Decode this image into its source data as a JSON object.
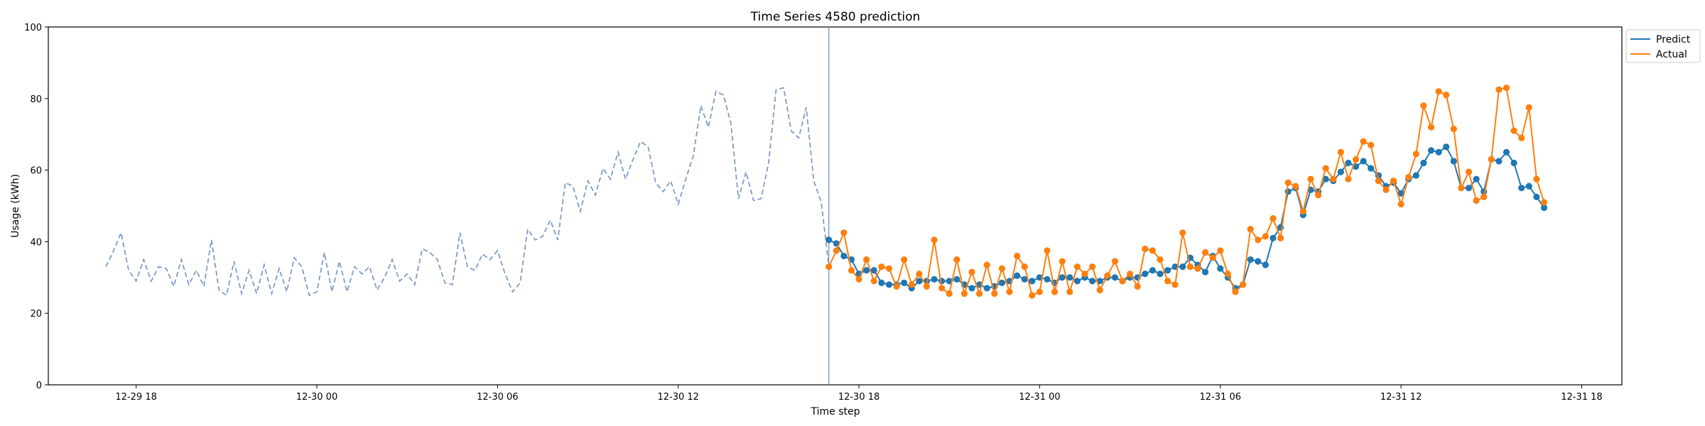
{
  "chart_data": {
    "type": "line",
    "title": "Time Series 4580 prediction",
    "xlabel": "Time step",
    "ylabel": "Usage (kWh)",
    "ylim": [
      0,
      100
    ],
    "yticks": [
      "0",
      "20",
      "40",
      "60",
      "80",
      "100"
    ],
    "xlim": [
      "12-29 15:05",
      "12-31 19:20"
    ],
    "xticks": [
      {
        "value": "12-29 18:00",
        "label": "12-29 18"
      },
      {
        "value": "12-30 00:00",
        "label": "12-30 00"
      },
      {
        "value": "12-30 06:00",
        "label": "12-30 06"
      },
      {
        "value": "12-30 12:00",
        "label": "12-30 12"
      },
      {
        "value": "12-30 18:00",
        "label": "12-30 18"
      },
      {
        "value": "12-31 00:00",
        "label": "12-31 00"
      },
      {
        "value": "12-31 06:00",
        "label": "12-31 06"
      },
      {
        "value": "12-31 12:00",
        "label": "12-31 12"
      },
      {
        "value": "12-31 18:00",
        "label": "12-31 18"
      }
    ],
    "grid": false,
    "legend_position": "upper-right-outside",
    "forecast_start": "12-30 17:00",
    "colors": {
      "history": "#7d9cc9",
      "predict": "#1f77b4",
      "actual": "#ff7f0e",
      "divider": "#7d9cc9"
    },
    "history": {
      "start": "12-29 17:00",
      "step_minutes": 15,
      "values": [
        33,
        37.5,
        42.5,
        32,
        29,
        35,
        29,
        33,
        32.5,
        27.5,
        35,
        28,
        32,
        27.5,
        40.5,
        26.5,
        25,
        34.5,
        25.5,
        32,
        25.5,
        33.5,
        25.5,
        32.5,
        26,
        35.5,
        33,
        25,
        26,
        37,
        26,
        34.5,
        26,
        33,
        31,
        33,
        26.5,
        30,
        35,
        29,
        31,
        28,
        38,
        37,
        35,
        28.5,
        28,
        42.5,
        33,
        32,
        36.5,
        35,
        37.5,
        31,
        26,
        28.5,
        43.5,
        40.5,
        41.5,
        46,
        40.5,
        56.5,
        55.5,
        48.5,
        57,
        53,
        60.5,
        57.5,
        65,
        57.5,
        63,
        68,
        66.5,
        56.5,
        54,
        57,
        50.5,
        57.5,
        64,
        78,
        72,
        82,
        81,
        73,
        52,
        59.5,
        51.5,
        52,
        62,
        82.5,
        83,
        71,
        69,
        77.5,
        57,
        51,
        33
      ]
    },
    "series": [
      {
        "name": "Predict",
        "start": "12-30 17:00",
        "step_minutes": 15,
        "values": [
          40.5,
          39.5,
          36,
          35,
          31,
          32,
          32,
          28.5,
          28,
          28,
          28.5,
          27,
          29,
          29,
          29.5,
          29,
          29,
          29.5,
          28,
          27,
          28,
          27,
          27.5,
          28.5,
          29,
          30.5,
          29.5,
          29,
          30,
          29.5,
          28.5,
          30,
          30,
          29,
          30,
          29,
          29,
          30,
          30,
          29,
          30,
          30,
          31,
          32,
          31,
          32,
          33,
          33,
          35.5,
          33.5,
          31.5,
          36,
          32.5,
          30,
          27,
          28,
          35,
          34.5,
          33.5,
          41,
          44,
          54,
          55,
          47.5,
          54.5,
          54,
          57.5,
          57,
          59.5,
          62,
          61,
          62.5,
          60.5,
          58.5,
          55.5,
          56.5,
          53.5,
          57.5,
          58.5,
          62,
          65.5,
          65,
          66.5,
          62.5,
          55,
          55,
          57.5,
          54,
          63,
          62.5,
          65,
          62,
          55,
          55.5,
          52.5,
          49.5
        ]
      },
      {
        "name": "Actual",
        "start": "12-30 17:00",
        "step_minutes": 15,
        "values": [
          33,
          37.5,
          42.5,
          32,
          29.5,
          35,
          29,
          33,
          32.5,
          27.5,
          35,
          28,
          31,
          27.5,
          40.5,
          27,
          25.5,
          35,
          25.5,
          31.5,
          25.5,
          33.5,
          25.5,
          32.5,
          26,
          36,
          33,
          25,
          26,
          37.5,
          26,
          34.5,
          26,
          33,
          31,
          33,
          26.5,
          30.5,
          34.5,
          29,
          31,
          27.5,
          38,
          37.5,
          35,
          29,
          28,
          42.5,
          33,
          32.5,
          37,
          35.5,
          37.5,
          31,
          26,
          28,
          43.5,
          40.5,
          41.5,
          46.5,
          41,
          56.5,
          55.5,
          48.5,
          57.5,
          53,
          60.5,
          57.5,
          65,
          57.5,
          63,
          68,
          67,
          57,
          54.5,
          57,
          50.5,
          58,
          64.5,
          78,
          72,
          82,
          81,
          71.5,
          55,
          59.5,
          51.5,
          52.5,
          63,
          82.5,
          83,
          71,
          69,
          77.5,
          57.5,
          51
        ]
      }
    ]
  }
}
